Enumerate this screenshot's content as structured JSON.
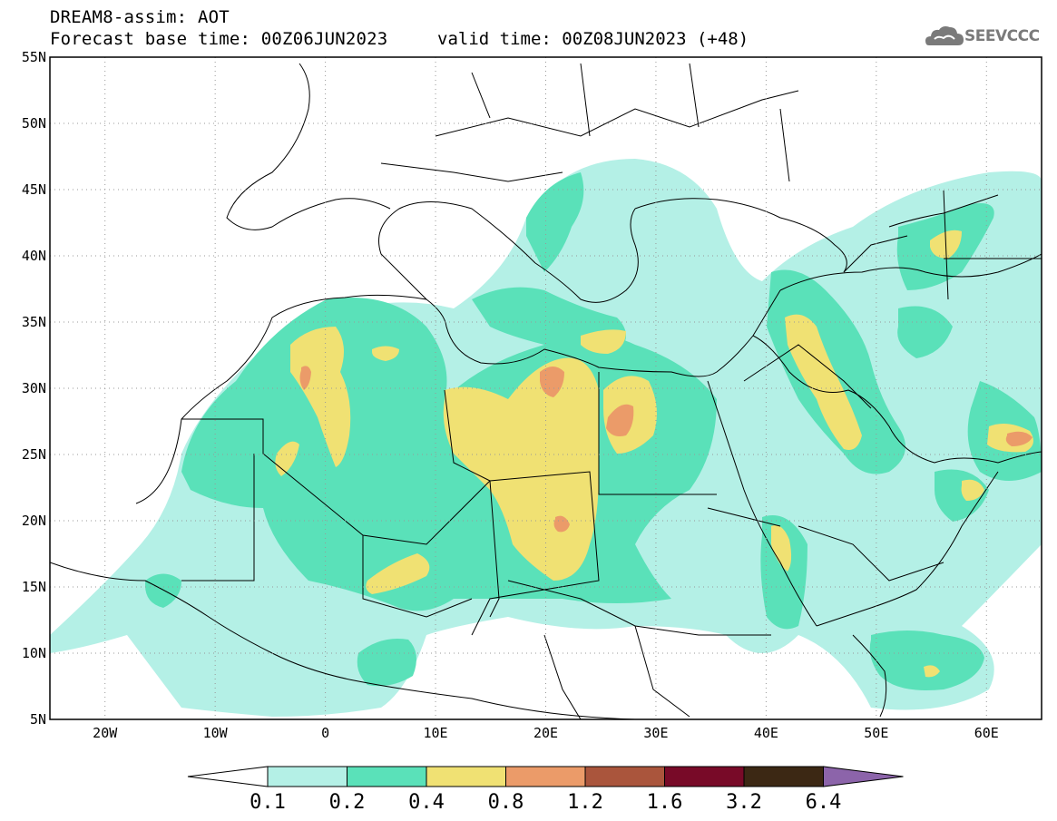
{
  "header": {
    "line1": "DREAM8-assim: AOT",
    "line2": "Forecast base time: 00Z06JUN2023",
    "line3": "valid time: 00Z08JUN2023 (+48)"
  },
  "logo": {
    "text": "SEEVCCC",
    "icon": "cloud-icon"
  },
  "map": {
    "lat_labels": [
      "55N",
      "50N",
      "45N",
      "40N",
      "35N",
      "30N",
      "25N",
      "20N",
      "15N",
      "10N",
      "5N"
    ],
    "lon_labels": [
      "20W",
      "10W",
      "0",
      "10E",
      "20E",
      "30E",
      "40E",
      "50E",
      "60E"
    ]
  },
  "colorbar": {
    "labels": [
      "0.1",
      "0.2",
      "0.4",
      "0.8",
      "1.2",
      "1.6",
      "3.2",
      "6.4"
    ],
    "colors": [
      "#ffffff",
      "#b4f0e6",
      "#5ae1b9",
      "#f0e173",
      "#eb9b69",
      "#aa553c",
      "#780a28",
      "#3c2814",
      "#8c64aa"
    ]
  }
}
